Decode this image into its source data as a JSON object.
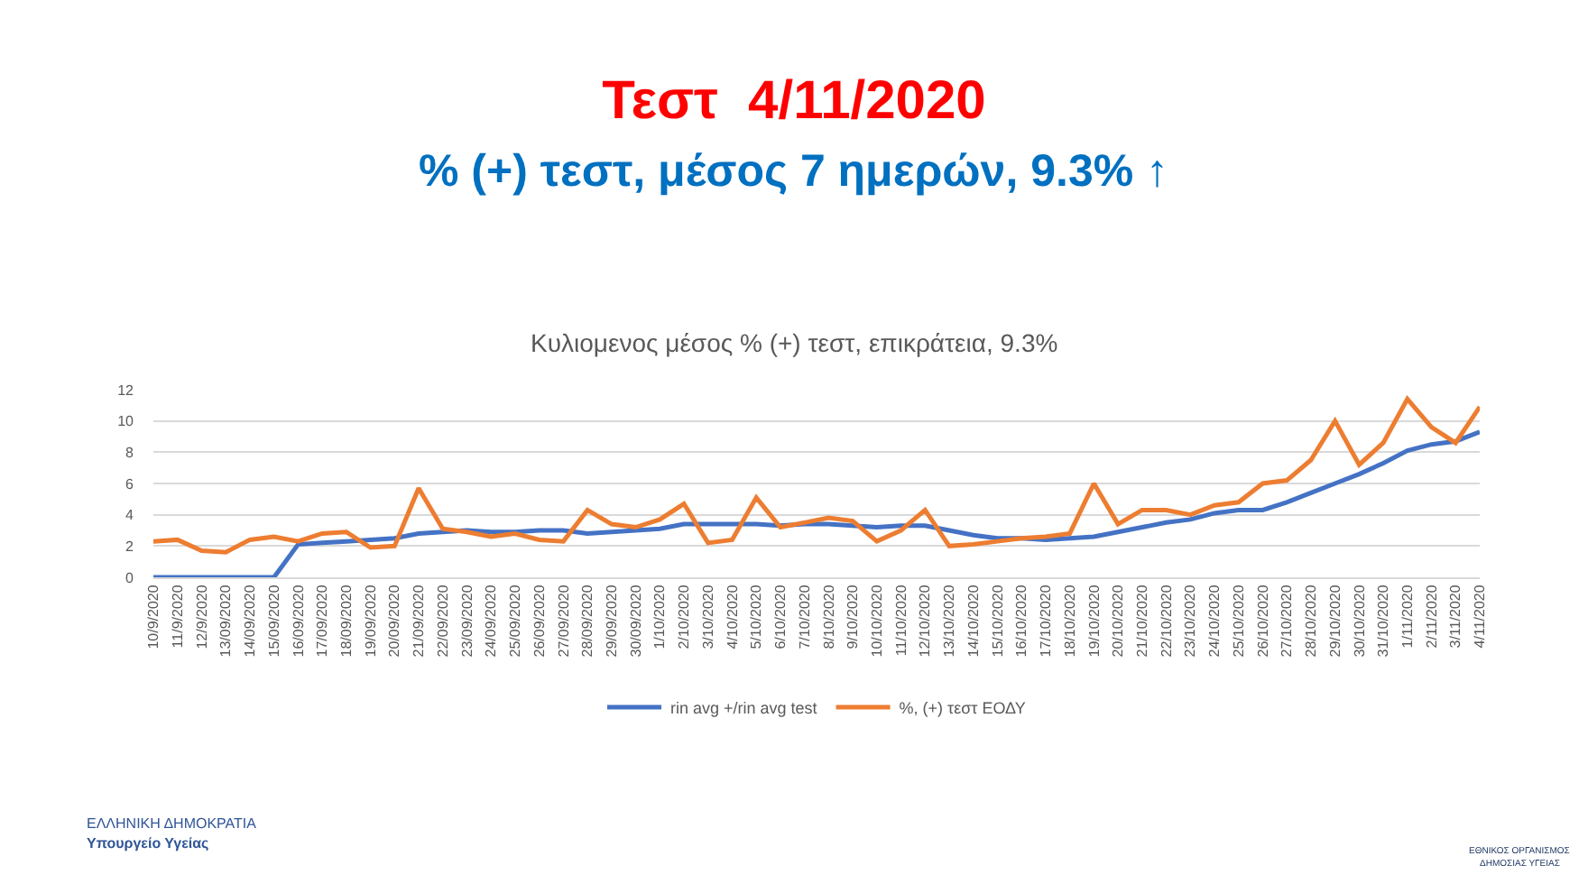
{
  "chart_data": {
    "type": "line",
    "title": "Τεστ  4/11/2020",
    "subtitle": "% (+) τεστ, μέσος 7 ημερών, 9.3% ↑",
    "annotations": [
      "Κυλιομενος μέσος % (+) τεστ, επικράτεια, 9.3%",
      "ΕΛΛΗΝΙΚΗ ΔΗΜΟΚΡΑΤΙΑ",
      "Υπουργείο Υγείας",
      "ΕΘΝΙΚΟΣ ΟΡΓΑΝΙΣΜΟΣ",
      "ΔΗΜΟΣΙΑΣ ΥΓΕΙΑΣ"
    ],
    "categories": [
      "10/9/2020",
      "11/9/2020",
      "12/9/2020",
      "13/09/2020",
      "14/09/2020",
      "15/09/2020",
      "16/09/2020",
      "17/09/2020",
      "18/09/2020",
      "19/09/2020",
      "20/09/2020",
      "21/09/2020",
      "22/09/2020",
      "23/09/2020",
      "24/09/2020",
      "25/09/2020",
      "26/09/2020",
      "27/09/2020",
      "28/09/2020",
      "29/09/2020",
      "30/09/2020",
      "1/10/2020",
      "2/10/2020",
      "3/10/2020",
      "4/10/2020",
      "5/10/2020",
      "6/10/2020",
      "7/10/2020",
      "8/10/2020",
      "9/10/2020",
      "10/10/2020",
      "11/10/2020",
      "12/10/2020",
      "13/10/2020",
      "14/10/2020",
      "15/10/2020",
      "16/10/2020",
      "17/10/2020",
      "18/10/2020",
      "19/10/2020",
      "20/10/2020",
      "21/10/2020",
      "22/10/2020",
      "23/10/2020",
      "24/10/2020",
      "25/10/2020",
      "26/10/2020",
      "27/10/2020",
      "28/10/2020",
      "29/10/2020",
      "30/10/2020",
      "31/10/2020",
      "1/11/2020",
      "2/11/2020",
      "3/11/2020",
      "4/11/2020"
    ],
    "series": [
      {
        "name": "rin avg +/rin avg test",
        "color": "#4472c4",
        "values": [
          0,
          0,
          0,
          0,
          0,
          0,
          2.1,
          2.2,
          2.3,
          2.4,
          2.5,
          2.8,
          2.9,
          3.0,
          2.9,
          2.9,
          3.0,
          3.0,
          2.8,
          2.9,
          3.0,
          3.1,
          3.4,
          3.4,
          3.4,
          3.4,
          3.3,
          3.4,
          3.4,
          3.3,
          3.2,
          3.3,
          3.3,
          3.0,
          2.7,
          2.5,
          2.5,
          2.4,
          2.5,
          2.6,
          2.9,
          3.2,
          3.5,
          3.7,
          4.1,
          4.3,
          4.3,
          4.8,
          5.4,
          6.0,
          6.6,
          7.3,
          8.1,
          8.5,
          8.7,
          9.3
        ]
      },
      {
        "name": "%, (+) τεστ ΕΟΔΥ",
        "color": "#ed7d31",
        "values": [
          2.3,
          2.4,
          1.7,
          1.6,
          2.4,
          2.6,
          2.3,
          2.8,
          2.9,
          1.9,
          2.0,
          5.7,
          3.1,
          2.9,
          2.6,
          2.8,
          2.4,
          2.3,
          4.3,
          3.4,
          3.2,
          3.7,
          4.7,
          2.2,
          2.4,
          5.1,
          3.2,
          3.5,
          3.8,
          3.6,
          2.3,
          3.0,
          4.3,
          2.0,
          2.1,
          2.3,
          2.5,
          2.6,
          2.8,
          6.0,
          3.4,
          4.3,
          4.3,
          4.0,
          4.6,
          4.8,
          6.0,
          6.2,
          7.5,
          10.0,
          7.2,
          8.6,
          11.4,
          9.6,
          8.6,
          10.9
        ]
      }
    ],
    "ylim": [
      0,
      12
    ],
    "yticks": [
      0,
      2,
      4,
      6,
      8,
      10,
      12
    ],
    "grid": "y",
    "legend": "bottom"
  }
}
